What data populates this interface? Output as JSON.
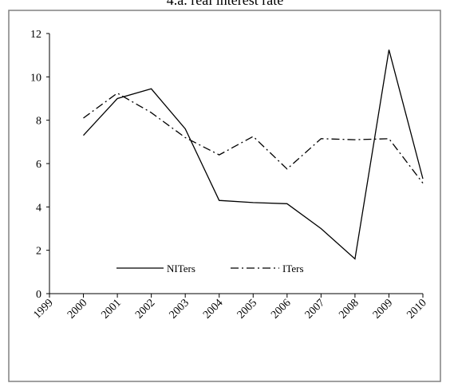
{
  "chart_data": {
    "type": "line",
    "title": "4.a. real interest rate",
    "xlabel": "",
    "ylabel": "",
    "x": [
      "1999",
      "2000",
      "2001",
      "2002",
      "2003",
      "2004",
      "2005",
      "2006",
      "2007",
      "2008",
      "2009",
      "2010"
    ],
    "ylim": [
      0,
      12
    ],
    "yticks": [
      0,
      2,
      4,
      6,
      8,
      10,
      12
    ],
    "grid": false,
    "legend_position": "lower-center",
    "series": [
      {
        "name": "NITers",
        "style": "solid",
        "color": "#000000",
        "values": [
          null,
          7.3,
          9.0,
          9.45,
          7.6,
          4.3,
          4.2,
          4.15,
          3.0,
          1.6,
          11.25,
          5.3
        ]
      },
      {
        "name": "ITers",
        "style": "dash-dot",
        "color": "#000000",
        "values": [
          null,
          8.1,
          9.25,
          8.35,
          7.2,
          6.4,
          7.25,
          5.75,
          7.15,
          7.1,
          7.15,
          5.1
        ]
      }
    ]
  }
}
